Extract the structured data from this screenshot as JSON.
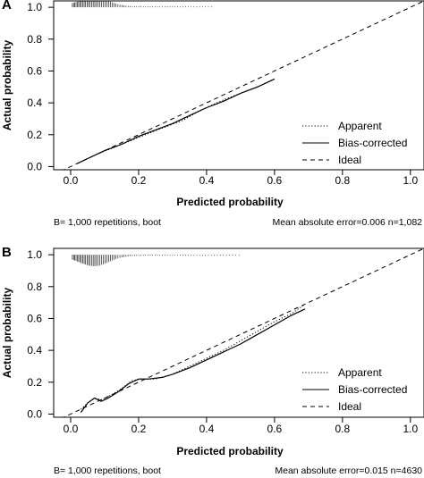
{
  "chart_data": [
    {
      "panel_label": "A",
      "type": "line",
      "xlabel": "Predicted probability",
      "ylabel": "Actual probability",
      "xlim": [
        -0.05,
        1.04
      ],
      "ylim": [
        -0.02,
        1.04
      ],
      "xticks": [
        "0.0",
        "0.2",
        "0.4",
        "0.6",
        "0.8",
        "1.0"
      ],
      "xtick_values": [
        0,
        0.2,
        0.4,
        0.6,
        0.8,
        1.0
      ],
      "yticks": [
        "0.0",
        "0.2",
        "0.4",
        "0.6",
        "0.8",
        "1.0"
      ],
      "ytick_values": [
        0,
        0.2,
        0.4,
        0.6,
        0.8,
        1.0
      ],
      "legend_position": "bottom-right",
      "series": [
        {
          "name": "Apparent",
          "style": "dotted",
          "x": [
            0.02,
            0.08,
            0.15,
            0.22,
            0.28,
            0.33,
            0.38,
            0.44,
            0.5,
            0.56,
            0.6
          ],
          "y": [
            0.02,
            0.08,
            0.14,
            0.2,
            0.25,
            0.29,
            0.35,
            0.41,
            0.46,
            0.51,
            0.55
          ]
        },
        {
          "name": "Bias-corrected",
          "style": "solid",
          "x": [
            0.02,
            0.05,
            0.1,
            0.15,
            0.2,
            0.25,
            0.3,
            0.33,
            0.36,
            0.4,
            0.45,
            0.5,
            0.55,
            0.6
          ],
          "y": [
            0.02,
            0.05,
            0.1,
            0.14,
            0.19,
            0.23,
            0.27,
            0.3,
            0.33,
            0.37,
            0.41,
            0.46,
            0.5,
            0.55
          ]
        },
        {
          "name": "Ideal",
          "style": "dashed",
          "x": [
            -0.05,
            1.04
          ],
          "y": [
            -0.05,
            1.04
          ]
        }
      ],
      "footer_left": "B= 1,000 repetitions, boot",
      "footer_right": "Mean absolute error=0.006 n=1,082"
    },
    {
      "panel_label": "B",
      "type": "line",
      "xlabel": "Predicted probability",
      "ylabel": "Actual probability",
      "xlim": [
        -0.05,
        1.04
      ],
      "ylim": [
        -0.02,
        1.04
      ],
      "xticks": [
        "0.0",
        "0.2",
        "0.4",
        "0.6",
        "0.8",
        "1.0"
      ],
      "xtick_values": [
        0,
        0.2,
        0.4,
        0.6,
        0.8,
        1.0
      ],
      "yticks": [
        "0.0",
        "0.2",
        "0.4",
        "0.6",
        "0.8",
        "1.0"
      ],
      "ytick_values": [
        0,
        0.2,
        0.4,
        0.6,
        0.8,
        1.0
      ],
      "legend_position": "bottom-right",
      "series": [
        {
          "name": "Apparent",
          "style": "dotted",
          "x": [
            0.03,
            0.05,
            0.07,
            0.09,
            0.12,
            0.15,
            0.18,
            0.21,
            0.25,
            0.3,
            0.35,
            0.4,
            0.45,
            0.5,
            0.55,
            0.6,
            0.65,
            0.69
          ],
          "y": [
            0.03,
            0.07,
            0.1,
            0.09,
            0.12,
            0.16,
            0.21,
            0.22,
            0.22,
            0.25,
            0.3,
            0.35,
            0.4,
            0.46,
            0.52,
            0.58,
            0.63,
            0.69
          ]
        },
        {
          "name": "Bias-corrected",
          "style": "solid",
          "x": [
            0.03,
            0.05,
            0.07,
            0.09,
            0.11,
            0.14,
            0.17,
            0.2,
            0.23,
            0.27,
            0.3,
            0.35,
            0.4,
            0.45,
            0.5,
            0.55,
            0.6,
            0.65,
            0.69
          ],
          "y": [
            0.01,
            0.07,
            0.1,
            0.08,
            0.1,
            0.14,
            0.19,
            0.22,
            0.22,
            0.23,
            0.25,
            0.29,
            0.34,
            0.39,
            0.44,
            0.5,
            0.56,
            0.62,
            0.66
          ]
        },
        {
          "name": "Ideal",
          "style": "dashed",
          "x": [
            -0.05,
            1.04
          ],
          "y": [
            -0.05,
            1.04
          ]
        }
      ],
      "footer_left": "B= 1,000 repetitions, boot",
      "footer_right": "Mean absolute error=0.015 n=4630"
    }
  ]
}
